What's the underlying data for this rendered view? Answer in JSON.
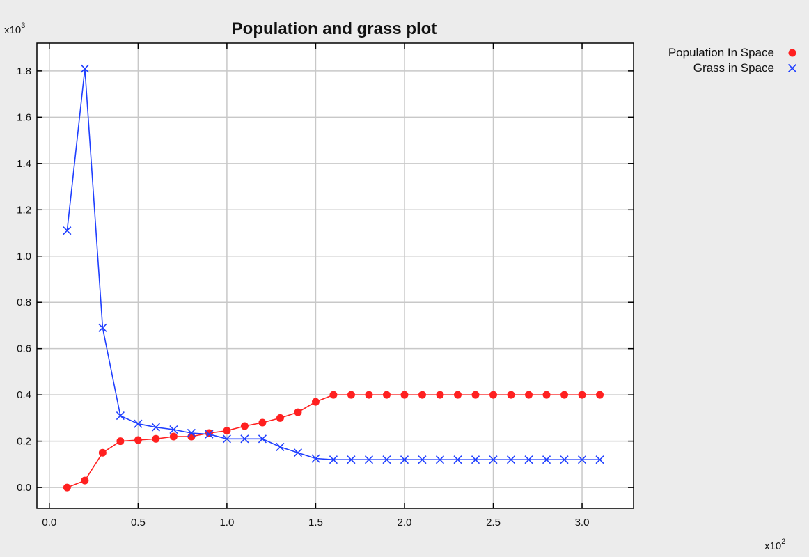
{
  "chart_data": {
    "type": "line",
    "title": "Population and grass plot",
    "y_multiplier_label": "x10",
    "y_multiplier_exp": "3",
    "x_multiplier_label": "x10",
    "x_multiplier_exp": "2",
    "xlim": [
      -0.07,
      3.29
    ],
    "ylim": [
      -0.09,
      1.92
    ],
    "x_ticks": [
      0.0,
      0.5,
      1.0,
      1.5,
      2.0,
      2.5,
      3.0
    ],
    "x_tick_labels": [
      "0.0",
      "0.5",
      "1.0",
      "1.5",
      "2.0",
      "2.5",
      "3.0"
    ],
    "y_ticks": [
      0.0,
      0.2,
      0.4,
      0.6,
      0.8,
      1.0,
      1.2,
      1.4,
      1.6,
      1.8
    ],
    "y_tick_labels": [
      "0.0",
      "0.2",
      "0.4",
      "0.6",
      "0.8",
      "1.0",
      "1.2",
      "1.4",
      "1.6",
      "1.8"
    ],
    "grid": true,
    "legend_position": "top-right, outside plot",
    "x": [
      0.1,
      0.2,
      0.3,
      0.4,
      0.5,
      0.6,
      0.7,
      0.8,
      0.9,
      1.0,
      1.1,
      1.2,
      1.3,
      1.4,
      1.5,
      1.6,
      1.7,
      1.8,
      1.9,
      2.0,
      2.1,
      2.2,
      2.3,
      2.4,
      2.5,
      2.6,
      2.7,
      2.8,
      2.9,
      3.0,
      3.1
    ],
    "series": [
      {
        "name": "Population In Space",
        "marker": "circle",
        "color": "#ff2020",
        "values": [
          0.0,
          0.03,
          0.15,
          0.2,
          0.205,
          0.21,
          0.22,
          0.22,
          0.235,
          0.245,
          0.265,
          0.28,
          0.3,
          0.325,
          0.37,
          0.4,
          0.4,
          0.4,
          0.4,
          0.4,
          0.4,
          0.4,
          0.4,
          0.4,
          0.4,
          0.4,
          0.4,
          0.4,
          0.4,
          0.4,
          0.4
        ]
      },
      {
        "name": "Grass in Space",
        "marker": "x",
        "color": "#1f3fff",
        "values": [
          1.11,
          1.81,
          0.69,
          0.31,
          0.275,
          0.26,
          0.25,
          0.235,
          0.23,
          0.21,
          0.21,
          0.21,
          0.175,
          0.15,
          0.125,
          0.12,
          0.12,
          0.12,
          0.12,
          0.12,
          0.12,
          0.12,
          0.12,
          0.12,
          0.12,
          0.12,
          0.12,
          0.12,
          0.12,
          0.12,
          0.12
        ]
      }
    ]
  }
}
